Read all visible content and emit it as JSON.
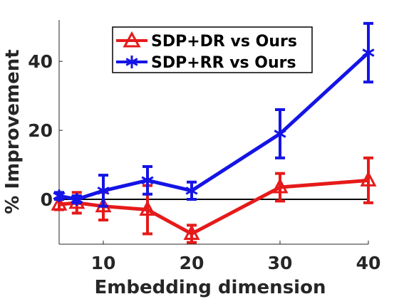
{
  "chart_data": {
    "type": "line",
    "title": "",
    "xlabel": "Embedding dimension",
    "ylabel": "% Improvement",
    "xlim": [
      5,
      40
    ],
    "ylim": [
      -13,
      52
    ],
    "xticks": [
      10,
      20,
      30,
      40
    ],
    "yticks": [
      0,
      20,
      40
    ],
    "xtick_labels": [
      "10",
      "20",
      "30",
      "40"
    ],
    "ytick_labels": [
      "0",
      "20",
      "40"
    ],
    "grid": false,
    "legend_position": "top-right",
    "reference_line": {
      "y": 0,
      "color": "#000000"
    },
    "series": [
      {
        "name": "SDP+DR vs Ours",
        "color": "#e61a1a",
        "marker": "triangle",
        "x": [
          5,
          7,
          10,
          15,
          20,
          30,
          40
        ],
        "y": [
          -1.5,
          -1,
          -2,
          -3,
          -10,
          3.5,
          5.5
        ],
        "err_low": [
          1.5,
          3,
          4,
          7,
          2.5,
          4,
          6.5
        ],
        "err_high": [
          1.5,
          3,
          4,
          7,
          2.5,
          4,
          6.5
        ]
      },
      {
        "name": "SDP+RR vs Ours",
        "color": "#1414e6",
        "marker": "star",
        "x": [
          5,
          7,
          10,
          15,
          20,
          30,
          40
        ],
        "y": [
          1,
          0,
          2.5,
          5.5,
          2.5,
          19,
          42.5
        ],
        "err_low": [
          1,
          1,
          4.5,
          4,
          2.5,
          7,
          8.5
        ],
        "err_high": [
          1,
          1,
          4.5,
          4,
          2.5,
          7,
          8.5
        ]
      }
    ]
  }
}
